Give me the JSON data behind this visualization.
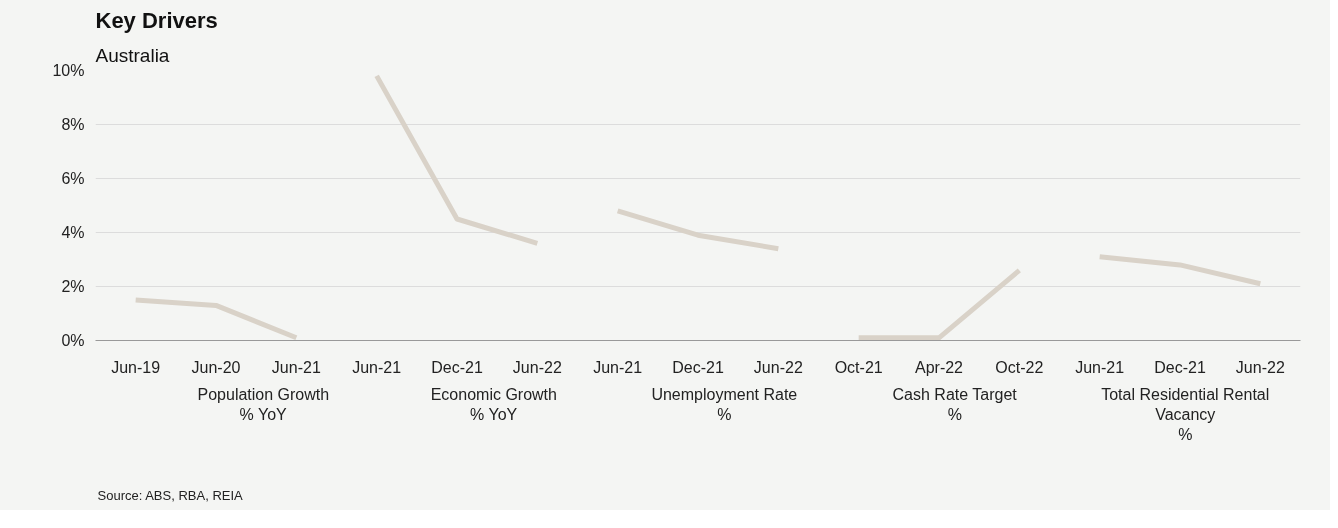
{
  "chart_data": {
    "type": "line",
    "title": "Key Drivers",
    "subtitle": "Australia",
    "categories": [
      "Jun-19",
      "Jun-20",
      "Jun-21",
      "Jun-21",
      "Dec-21",
      "Jun-22",
      "Jun-21",
      "Dec-21",
      "Jun-22",
      "Oct-21",
      "Apr-22",
      "Oct-22",
      "Jun-21",
      "Dec-21",
      "Jun-22"
    ],
    "series": [
      {
        "color": "#d9d2c8",
        "values": [
          1.5,
          1.3,
          0.1,
          null,
          null,
          null,
          null,
          null,
          null,
          null,
          null,
          null,
          null,
          null,
          null
        ]
      },
      {
        "color": "#d9d2c8",
        "values": [
          null,
          null,
          null,
          9.8,
          4.5,
          3.6,
          null,
          null,
          null,
          null,
          null,
          null,
          null,
          null,
          null
        ]
      },
      {
        "color": "#d9d2c8",
        "values": [
          null,
          null,
          null,
          null,
          null,
          null,
          4.8,
          3.9,
          3.4,
          null,
          null,
          null,
          null,
          null,
          null
        ]
      },
      {
        "color": "#d9d2c8",
        "values": [
          null,
          null,
          null,
          null,
          null,
          null,
          null,
          null,
          null,
          0.1,
          0.1,
          2.6,
          null,
          null,
          null
        ]
      },
      {
        "color": "#d9d2c8",
        "values": [
          null,
          null,
          null,
          null,
          null,
          null,
          null,
          null,
          null,
          null,
          null,
          null,
          3.1,
          2.8,
          2.1
        ]
      }
    ],
    "ylim": [
      0,
      10
    ],
    "yticks": [
      {
        "value": 0,
        "label": "0%"
      },
      {
        "value": 2,
        "label": "2%"
      },
      {
        "value": 4,
        "label": "4%"
      },
      {
        "value": 6,
        "label": "6%"
      },
      {
        "value": 8,
        "label": "8%"
      },
      {
        "value": 10,
        "label": "10%"
      }
    ],
    "grid": "y",
    "marker": "none",
    "line_style": "solid",
    "annotations": [
      "Population Growth\n% YoY",
      "Economic Growth\n% YoY",
      "Unemployment Rate\n%",
      "Cash Rate Target\n%",
      "Total Residential Rental\nVacancy\n%",
      "Source: ABS, RBA, REIA"
    ]
  }
}
